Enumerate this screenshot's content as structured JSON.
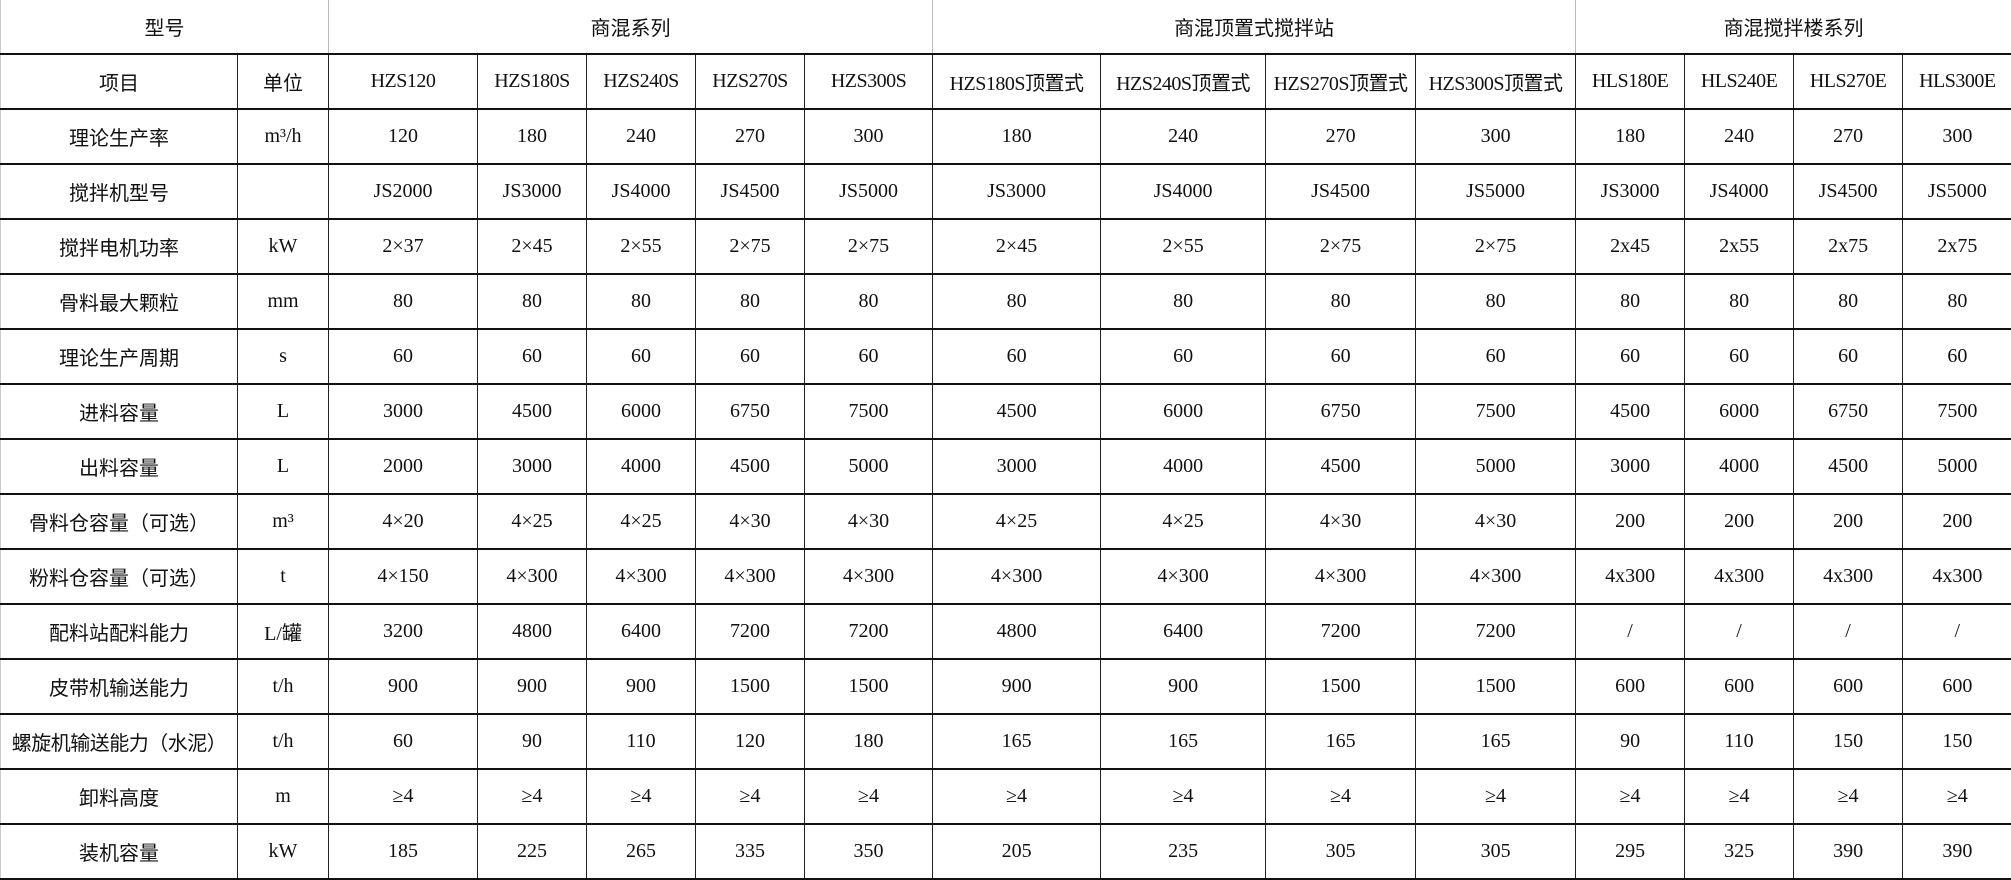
{
  "header": {
    "model_label": "型号",
    "groups": [
      {
        "label": "商混系列",
        "span": 5
      },
      {
        "label": "商混顶置式搅拌站",
        "span": 4
      },
      {
        "label": "商混搅拌楼系列",
        "span": 4
      }
    ]
  },
  "columns": {
    "item_label": "项目",
    "unit_label": "单位",
    "models": [
      "HZS120",
      "HZS180S",
      "HZS240S",
      "HZS270S",
      "HZS300S",
      "HZS180S顶置式",
      "HZS240S顶置式",
      "HZS270S顶置式",
      "HZS300S顶置式",
      "HLS180E",
      "HLS240E",
      "HLS270E",
      "HLS300E"
    ]
  },
  "rows": [
    {
      "item": "理论生产率",
      "unit": "m³/h",
      "values": [
        "120",
        "180",
        "240",
        "270",
        "300",
        "180",
        "240",
        "270",
        "300",
        "180",
        "240",
        "270",
        "300"
      ]
    },
    {
      "item": "搅拌机型号",
      "unit": "",
      "values": [
        "JS2000",
        "JS3000",
        "JS4000",
        "JS4500",
        "JS5000",
        "JS3000",
        "JS4000",
        "JS4500",
        "JS5000",
        "JS3000",
        "JS4000",
        "JS4500",
        "JS5000"
      ]
    },
    {
      "item": "搅拌电机功率",
      "unit": "kW",
      "values": [
        "2×37",
        "2×45",
        "2×55",
        "2×75",
        "2×75",
        "2×45",
        "2×55",
        "2×75",
        "2×75",
        "2x45",
        "2x55",
        "2x75",
        "2x75"
      ]
    },
    {
      "item": "骨料最大颗粒",
      "unit": "mm",
      "values": [
        "80",
        "80",
        "80",
        "80",
        "80",
        "80",
        "80",
        "80",
        "80",
        "80",
        "80",
        "80",
        "80"
      ]
    },
    {
      "item": "理论生产周期",
      "unit": "s",
      "values": [
        "60",
        "60",
        "60",
        "60",
        "60",
        "60",
        "60",
        "60",
        "60",
        "60",
        "60",
        "60",
        "60"
      ]
    },
    {
      "item": "进料容量",
      "unit": "L",
      "values": [
        "3000",
        "4500",
        "6000",
        "6750",
        "7500",
        "4500",
        "6000",
        "6750",
        "7500",
        "4500",
        "6000",
        "6750",
        "7500"
      ]
    },
    {
      "item": "出料容量",
      "unit": "L",
      "values": [
        "2000",
        "3000",
        "4000",
        "4500",
        "5000",
        "3000",
        "4000",
        "4500",
        "5000",
        "3000",
        "4000",
        "4500",
        "5000"
      ]
    },
    {
      "item": "骨料仓容量（可选）",
      "unit": "m³",
      "values": [
        "4×20",
        "4×25",
        "4×25",
        "4×30",
        "4×30",
        "4×25",
        "4×25",
        "4×30",
        "4×30",
        "200",
        "200",
        "200",
        "200"
      ]
    },
    {
      "item": "粉料仓容量（可选）",
      "unit": "t",
      "values": [
        "4×150",
        "4×300",
        "4×300",
        "4×300",
        "4×300",
        "4×300",
        "4×300",
        "4×300",
        "4×300",
        "4x300",
        "4x300",
        "4x300",
        "4x300"
      ]
    },
    {
      "item": "配料站配料能力",
      "unit": "L/罐",
      "values": [
        "3200",
        "4800",
        "6400",
        "7200",
        "7200",
        "4800",
        "6400",
        "7200",
        "7200",
        "/",
        "/",
        "/",
        "/"
      ]
    },
    {
      "item": "皮带机输送能力",
      "unit": "t/h",
      "values": [
        "900",
        "900",
        "900",
        "1500",
        "1500",
        "900",
        "900",
        "1500",
        "1500",
        "600",
        "600",
        "600",
        "600"
      ]
    },
    {
      "item": "螺旋机输送能力（水泥）",
      "unit": "t/h",
      "values": [
        "60",
        "90",
        "110",
        "120",
        "180",
        "165",
        "165",
        "165",
        "165",
        "90",
        "110",
        "150",
        "150"
      ]
    },
    {
      "item": "卸料高度",
      "unit": "m",
      "values": [
        "≥4",
        "≥4",
        "≥4",
        "≥4",
        "≥4",
        "≥4",
        "≥4",
        "≥4",
        "≥4",
        "≥4",
        "≥4",
        "≥4",
        "≥4"
      ]
    },
    {
      "item": "装机容量",
      "unit": "kW",
      "values": [
        "185",
        "225",
        "265",
        "335",
        "350",
        "205",
        "235",
        "305",
        "305",
        "295",
        "325",
        "390",
        "390"
      ]
    }
  ]
}
